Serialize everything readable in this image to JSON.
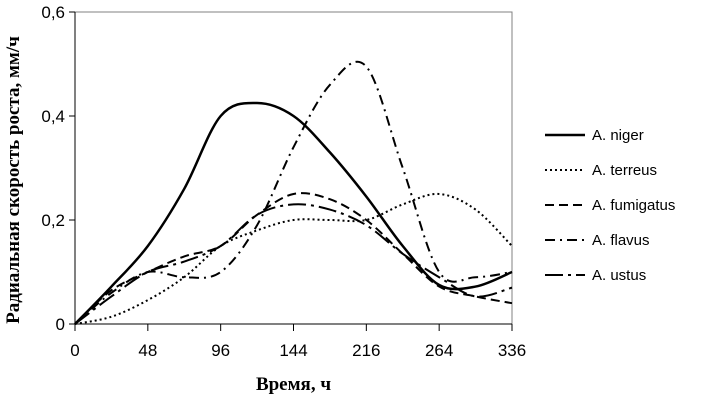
{
  "chart_data": {
    "type": "line",
    "title": "",
    "xlabel": "Время, ч",
    "ylabel": "Радиальная скорость роста, мм/ч",
    "x": [
      0,
      24,
      48,
      72,
      96,
      120,
      144,
      168,
      216,
      240,
      264,
      288,
      336
    ],
    "x_tick_labels": [
      "0",
      "48",
      "96",
      "144",
      "216",
      "264",
      "336"
    ],
    "y_tick_labels": [
      "0",
      "0,2",
      "0,4",
      "0,6"
    ],
    "ylim": [
      0,
      0.6
    ],
    "grid": false,
    "legend_position": "right",
    "series": [
      {
        "name": "A. niger",
        "style": "solid",
        "values": [
          0,
          0.072,
          0.15,
          0.26,
          0.4,
          0.425,
          0.4,
          0.33,
          0.245,
          0.15,
          0.075,
          0.072,
          0.1
        ]
      },
      {
        "name": "A. terreus",
        "style": "dotted",
        "values": [
          0,
          0.014,
          0.046,
          0.09,
          0.15,
          0.18,
          0.2,
          0.2,
          0.2,
          0.23,
          0.25,
          0.22,
          0.15
        ]
      },
      {
        "name": "A. fumigatus",
        "style": "dashed",
        "values": [
          0,
          0.065,
          0.1,
          0.13,
          0.15,
          0.21,
          0.25,
          0.24,
          0.2,
          0.135,
          0.072,
          0.053,
          0.04
        ]
      },
      {
        "name": "A. flavus",
        "style": "dashdot",
        "values": [
          0,
          0.06,
          0.1,
          0.09,
          0.1,
          0.19,
          0.34,
          0.46,
          0.495,
          0.3,
          0.1,
          0.09,
          0.1
        ]
      },
      {
        "name": "A. ustus",
        "style": "longdashdot",
        "values": [
          0,
          0.053,
          0.1,
          0.12,
          0.15,
          0.21,
          0.23,
          0.22,
          0.19,
          0.135,
          0.09,
          0.053,
          0.07
        ]
      }
    ]
  }
}
